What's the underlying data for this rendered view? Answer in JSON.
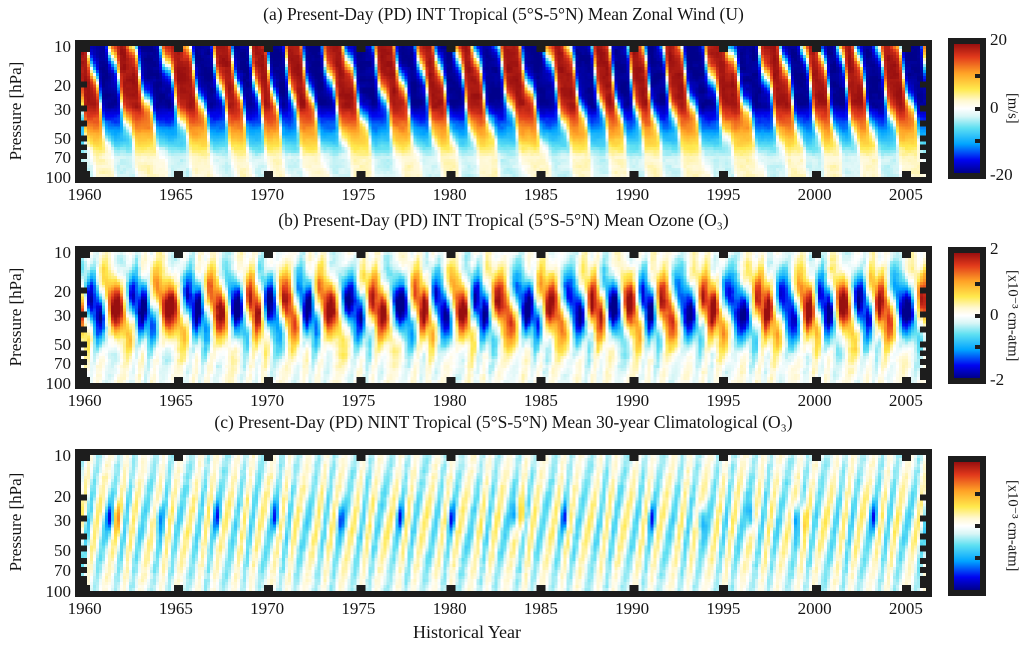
{
  "figure": {
    "xlabel": "Historical Year",
    "ylabel": "Pressure [hPa]",
    "background": "#ffffff",
    "frame_color": "#1d1d1d",
    "x_ticks": [
      1960,
      1965,
      1970,
      1975,
      1980,
      1985,
      1990,
      1995,
      2000,
      2005
    ],
    "x_range": [
      1959.8,
      2006.1
    ],
    "y_ticks": [
      10,
      20,
      30,
      50,
      70,
      100
    ],
    "y_minor_ticks": [
      20,
      30,
      40,
      50,
      60,
      70,
      80,
      90
    ],
    "y_range_hpa": [
      10,
      100
    ],
    "y_scale": "log"
  },
  "colormap": {
    "stops": [
      [
        -1.0,
        "#00008b"
      ],
      [
        -0.8,
        "#0004f0"
      ],
      [
        -0.55,
        "#00a4ff"
      ],
      [
        -0.3,
        "#5fe0f2"
      ],
      [
        -0.12,
        "#d8f6f6"
      ],
      [
        0.0,
        "#ffffff"
      ],
      [
        0.12,
        "#fff8d2"
      ],
      [
        0.3,
        "#ffe94d"
      ],
      [
        0.55,
        "#ffa226"
      ],
      [
        0.8,
        "#e1391b"
      ],
      [
        1.0,
        "#980f0f"
      ]
    ]
  },
  "panels": [
    {
      "label": "a",
      "title": "(a) Present-Day (PD) INT Tropical (5°S-5°N) Mean Zonal Wind (U)",
      "colorbar": {
        "tick_labels": [
          "20",
          "0",
          "-20"
        ],
        "unit": "[m/s]",
        "range": [
          -20,
          20
        ]
      }
    },
    {
      "label": "b",
      "title": "(b) Present-Day (PD) INT Tropical (5°S-5°N) Mean Ozone (O₃)",
      "colorbar": {
        "tick_labels": [
          "2",
          "0",
          "-2"
        ],
        "unit": "[x10⁻³ cm-atm]",
        "range": [
          -2,
          2
        ]
      }
    },
    {
      "label": "c",
      "title": "(c) Present-Day (PD) NINT Tropical (5°S-5°N) Mean 30-year Climatological (O₃)",
      "colorbar": {
        "tick_labels": [],
        "unit": "[x10⁻³ cm-atm]",
        "range": [
          -2,
          2
        ]
      }
    }
  ],
  "chart_data": [
    {
      "panel": "a",
      "type": "heatmap",
      "title": "(a) Present-Day (PD) INT Tropical (5°S-5°N) Mean Zonal Wind (U)",
      "xlabel": "Historical Year",
      "ylabel": "Pressure [hPa]",
      "x_range": [
        1960,
        2006
      ],
      "x_ticks": [
        1960,
        1965,
        1970,
        1975,
        1980,
        1985,
        1990,
        1995,
        2000,
        2005
      ],
      "y_range": [
        10,
        100
      ],
      "y_scale": "log",
      "y_ticks": [
        10,
        20,
        30,
        50,
        70,
        100
      ],
      "value_name": "zonal wind anomaly U",
      "value_units": "m/s",
      "value_range": [
        -20,
        20
      ],
      "colorbar_ticks": [
        20,
        0,
        -20
      ],
      "legend_position": "right colorbar",
      "grid": false,
      "pattern": {
        "kind": "quasi-biennial oscillation: alternating westerly (red, +20 m/s) and easterly (blue, -20 m/s) bands propagating downward in time",
        "period_years": 2.33,
        "phase_descent_cycles_top_to_bottom": 0.6,
        "full_amplitude_above_s": 0.45,
        "amplitude_taper_to": 0.14,
        "annual_wiggle": 0.3,
        "sharpness": 2.4,
        "easterly_bias_top": 0.12
      }
    },
    {
      "panel": "b",
      "type": "heatmap",
      "title": "(b) Present-Day (PD) INT Tropical (5°S-5°N) Mean Ozone (O₃)",
      "xlabel": "Historical Year",
      "ylabel": "Pressure [hPa]",
      "x_range": [
        1960,
        2006
      ],
      "x_ticks": [
        1960,
        1965,
        1970,
        1975,
        1980,
        1985,
        1990,
        1995,
        2000,
        2005
      ],
      "y_range": [
        10,
        100
      ],
      "y_scale": "log",
      "y_ticks": [
        10,
        20,
        30,
        50,
        70,
        100
      ],
      "value_name": "ozone anomaly",
      "value_units": "x10⁻³ cm-atm",
      "value_range": [
        -2,
        2
      ],
      "colorbar_ticks": [
        2,
        0,
        -2
      ],
      "legend_position": "right colorbar",
      "grid": false,
      "pattern": {
        "kind": "QBO ozone anomaly: tilted red/blue blobs phase-lagged behind the wind, strongest near 20-40 hPa, pale yellow/cyan annual streaks elsewhere",
        "period_years": 2.33,
        "phase_lag_rad": 2.3,
        "peak_s": 0.42,
        "peak_width_s": 0.26,
        "blob_narrowing_exponent": 1.8,
        "background_streak_amplitude": 0.2
      }
    },
    {
      "panel": "c",
      "type": "heatmap",
      "title": "(c) Present-Day (PD) NINT Tropical (5°S-5°N) Mean 30-year Climatological (O₃)",
      "xlabel": "Historical Year",
      "ylabel": "Pressure [hPa]",
      "x_range": [
        1960,
        2006
      ],
      "x_ticks": [
        1960,
        1965,
        1970,
        1975,
        1980,
        1985,
        1990,
        1995,
        2000,
        2005
      ],
      "y_range": [
        10,
        100
      ],
      "y_scale": "log",
      "y_ticks": [
        10,
        20,
        30,
        50,
        70,
        100
      ],
      "value_name": "30-year climatological ozone annual cycle",
      "value_units": "x10⁻³ cm-atm",
      "value_range": [
        -2,
        2
      ],
      "colorbar_ticks": [],
      "legend_position": "right colorbar",
      "grid": false,
      "pattern": {
        "kind": "faint repeating annual cycle of pale yellow/cyan vertical streaks with occasional short dark-blue and orange dashes near 30 hPa",
        "annual_amplitude": 0.4,
        "cyan_bias": -0.05,
        "dash_s": 0.46,
        "blue_dash_years": [
          1961.3,
          1964.0,
          1967.2,
          1970.4,
          1974.0,
          1977.3,
          1980.1,
          1983.6,
          1986.3,
          1991.1,
          1993.8,
          1996.6,
          1999.0,
          2003.3
        ],
        "orange_dash_years": [
          1961.7,
          1984.0,
          1999.4
        ],
        "blue_dash_amplitude": 0.48,
        "orange_dash_amplitude": 0.4
      }
    }
  ]
}
